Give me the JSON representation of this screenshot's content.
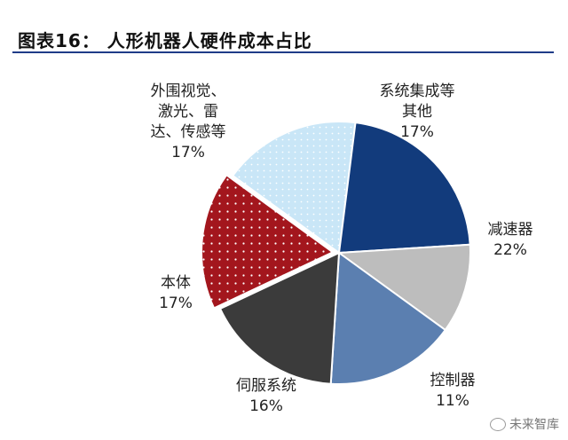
{
  "title": "图表16：  人形机器人硬件成本占比",
  "chart_data": {
    "type": "pie",
    "title": "",
    "slices": [
      {
        "label": "系统集成等其他",
        "label_lines": [
          "系统集成等",
          "其他"
        ],
        "value": 17,
        "value_label": "17%",
        "color": "#c9e6f7",
        "pattern": "light-dots"
      },
      {
        "label": "减速器",
        "label_lines": [
          "减速器"
        ],
        "value": 22,
        "value_label": "22%",
        "color": "#123b7c",
        "pattern": "none"
      },
      {
        "label": "控制器",
        "label_lines": [
          "控制器"
        ],
        "value": 11,
        "value_label": "11%",
        "color": "#bdbdbd",
        "pattern": "none"
      },
      {
        "label": "伺服系统",
        "label_lines": [
          "伺服系统"
        ],
        "value": 16,
        "value_label": "16%",
        "color": "#5b7fb0",
        "pattern": "none"
      },
      {
        "label": "本体",
        "label_lines": [
          "本体"
        ],
        "value": 17,
        "value_label": "17%",
        "color": "#3b3b3b",
        "pattern": "none"
      },
      {
        "label": "外围视觉、激光、雷达、传感等",
        "label_lines": [
          "外围视觉、",
          "激光、雷",
          "达、传感等"
        ],
        "value": 17,
        "value_label": "17%",
        "color": "#a3161d",
        "pattern": "white-dots"
      }
    ]
  },
  "watermark": {
    "text": "未来智库",
    "icon": "wechat-icon"
  }
}
